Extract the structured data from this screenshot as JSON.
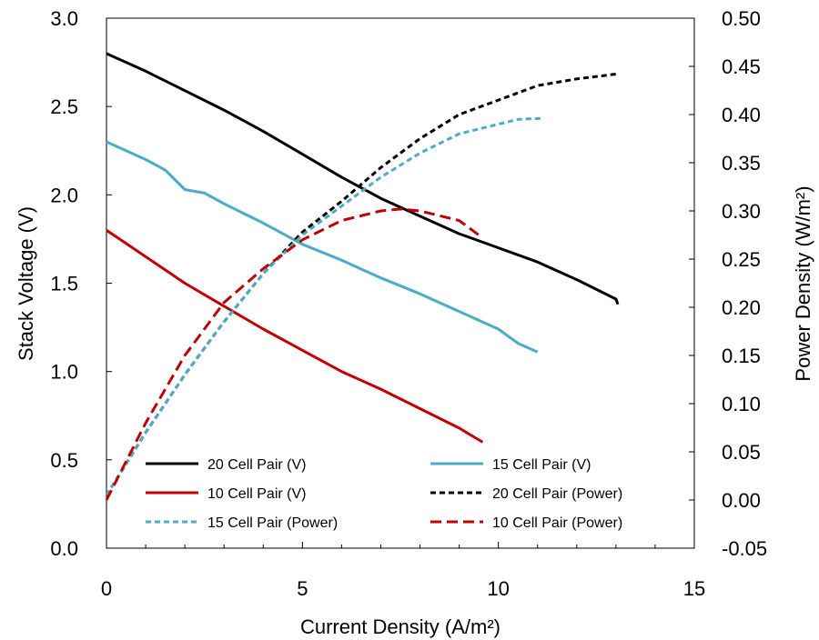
{
  "chart_data": {
    "type": "line",
    "xlabel": "Current Density (A/m²)",
    "ylabel_left": "Stack Voltage (V)",
    "ylabel_right": "Power Density (W/m²)",
    "xlim": [
      0,
      15
    ],
    "ylim_left": [
      0,
      3
    ],
    "ylim_right": [
      -0.05,
      0.5
    ],
    "xticks": [
      "0",
      "5",
      "10",
      "15"
    ],
    "yticks_left": [
      "0.0",
      "0.5",
      "1.0",
      "1.5",
      "2.0",
      "2.5",
      "3.0"
    ],
    "yticks_right": [
      "-0.05",
      "0.00",
      "0.05",
      "0.10",
      "0.15",
      "0.20",
      "0.25",
      "0.30",
      "0.35",
      "0.40",
      "0.45",
      "0.50"
    ],
    "grid": false,
    "legend_position": "bottom-left",
    "series": [
      {
        "name": "20 Cell Pair (V)",
        "axis": "left",
        "color": "#000000",
        "dash": "solid",
        "x": [
          0,
          1,
          2,
          3,
          4,
          5,
          6,
          7,
          8,
          9,
          10,
          11,
          12,
          13,
          13.05
        ],
        "y": [
          2.8,
          2.7,
          2.59,
          2.48,
          2.36,
          2.23,
          2.1,
          1.98,
          1.88,
          1.78,
          1.7,
          1.62,
          1.52,
          1.41,
          1.38
        ]
      },
      {
        "name": "15 Cell Pair (V)",
        "axis": "left",
        "color": "#4bacc6",
        "dash": "solid",
        "x": [
          0,
          1,
          1.5,
          2,
          2.5,
          3,
          4,
          5,
          6,
          7,
          8,
          9,
          10,
          10.5,
          11.0
        ],
        "y": [
          2.3,
          2.2,
          2.14,
          2.03,
          2.01,
          1.95,
          1.84,
          1.72,
          1.63,
          1.53,
          1.44,
          1.34,
          1.24,
          1.16,
          1.11
        ]
      },
      {
        "name": "10 Cell Pair (V)",
        "axis": "left",
        "color": "#c00000",
        "dash": "solid",
        "x": [
          0,
          1,
          2,
          3,
          4,
          5,
          6,
          7,
          8,
          9,
          9.6
        ],
        "y": [
          1.8,
          1.65,
          1.5,
          1.37,
          1.24,
          1.12,
          1.0,
          0.9,
          0.79,
          0.68,
          0.6
        ]
      },
      {
        "name": "20 Cell Pair (Power)",
        "axis": "right",
        "color": "#000000",
        "dash": "short",
        "x": [
          0,
          1,
          2,
          3,
          4,
          5,
          6,
          7,
          8,
          9,
          10,
          11,
          12,
          13,
          13.05
        ],
        "y": [
          0.005,
          0.07,
          0.13,
          0.185,
          0.235,
          0.278,
          0.31,
          0.345,
          0.375,
          0.4,
          0.415,
          0.43,
          0.437,
          0.442,
          0.44
        ]
      },
      {
        "name": "15 Cell Pair (Power)",
        "axis": "right",
        "color": "#4bacc6",
        "dash": "short",
        "x": [
          0,
          1,
          2,
          3,
          4,
          5,
          6,
          7,
          8,
          9,
          10,
          10.5,
          11.1
        ],
        "y": [
          0.005,
          0.07,
          0.13,
          0.185,
          0.235,
          0.275,
          0.305,
          0.335,
          0.36,
          0.38,
          0.39,
          0.395,
          0.396
        ]
      },
      {
        "name": "10 Cell Pair (Power)",
        "axis": "right",
        "color": "#c00000",
        "dash": "long",
        "x": [
          0,
          1,
          2,
          3,
          4,
          5,
          6,
          7,
          7.5,
          8,
          8.5,
          9,
          9.5
        ],
        "y": [
          0.0,
          0.08,
          0.15,
          0.205,
          0.24,
          0.27,
          0.29,
          0.3,
          0.302,
          0.3,
          0.295,
          0.29,
          0.275
        ]
      }
    ]
  }
}
